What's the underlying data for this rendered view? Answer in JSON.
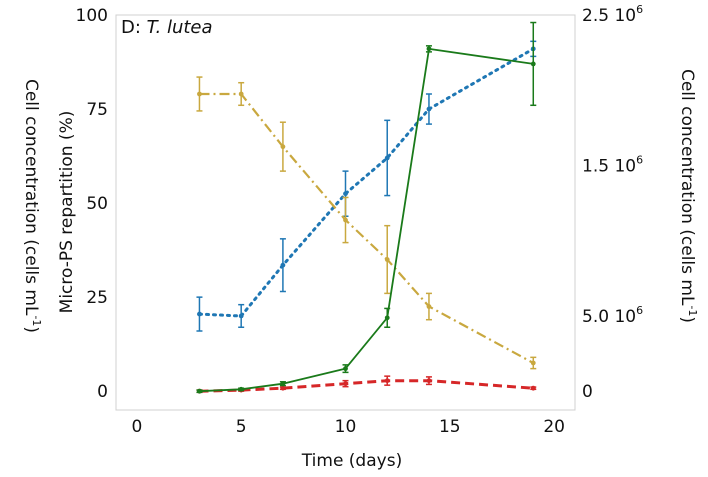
{
  "chart_data": {
    "type": "line",
    "panel_label": "D: ",
    "panel_species": "T. lutea",
    "xlabel": "Time (days)",
    "ylabel_left": "Micro-PS repartition (%)",
    "ylabel_right": "Cell concentration (cells mL",
    "ylabel_right_sup": "-1",
    "ylabel_right_end": ")",
    "ylabel_far_left": "Cell concentration (cells mL",
    "ylabel_far_left_sup": "-1",
    "ylabel_far_left_end": ")",
    "xlim": [
      -1,
      21
    ],
    "ylim": [
      -5,
      100
    ],
    "xticks": [
      0,
      5,
      10,
      15,
      20
    ],
    "xtick_labels": [
      "0",
      "5",
      "10",
      "15",
      "20"
    ],
    "yticks": [
      0,
      25,
      50,
      75,
      100
    ],
    "ytick_labels": [
      "0",
      "25",
      "50",
      "75",
      "100"
    ],
    "right_ticks": [
      {
        "value": 0,
        "label": "0",
        "sup": ""
      },
      {
        "value": 20,
        "label": "5.0 10",
        "sup": "6"
      },
      {
        "value": 60,
        "label": "1.5 10",
        "sup": "6"
      },
      {
        "value": 100,
        "label": "2.5 10",
        "sup": "6"
      }
    ],
    "grid": false,
    "series": [
      {
        "color": "#1f77b4",
        "style": "dotted",
        "x": [
          3,
          5,
          7,
          10,
          12,
          14,
          19
        ],
        "y": [
          20.5,
          20,
          33.5,
          52.5,
          62,
          75,
          91
        ],
        "err": [
          4.5,
          3,
          7,
          6,
          10,
          4,
          2
        ]
      },
      {
        "color": "#c9a83f",
        "style": "dashdot",
        "x": [
          3,
          5,
          7,
          10,
          12,
          14,
          19
        ],
        "y": [
          79,
          79,
          65,
          45.5,
          35,
          22.5,
          7.5
        ],
        "err": [
          4.5,
          3,
          6.5,
          6,
          9,
          3.5,
          1.5
        ]
      },
      {
        "color": "#d62728",
        "style": "dashed",
        "x": [
          3,
          5,
          7,
          10,
          12,
          14,
          19
        ],
        "y": [
          0,
          0.3,
          0.8,
          2,
          2.8,
          2.8,
          0.8
        ],
        "err": [
          0.3,
          0.3,
          0.3,
          0.8,
          1.2,
          1,
          0.3
        ]
      },
      {
        "color": "#1a7a1a",
        "style": "solid",
        "x": [
          3,
          5,
          7,
          10,
          12,
          14,
          19
        ],
        "y": [
          0,
          0.5,
          2,
          6,
          19.5,
          91,
          87
        ],
        "err": [
          0.3,
          0.3,
          0.5,
          1,
          2.5,
          0.8,
          11
        ]
      }
    ]
  }
}
